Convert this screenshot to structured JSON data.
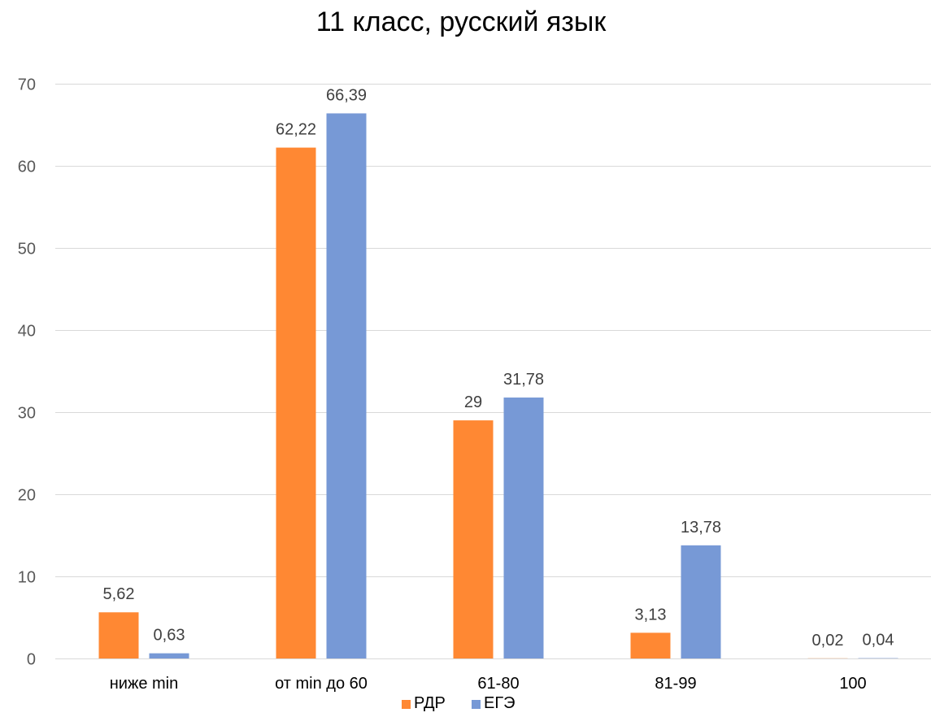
{
  "chart_data": {
    "type": "bar",
    "title": "11 класс, русский язык",
    "xlabel": "",
    "ylabel": "",
    "categories": [
      "ниже min",
      "от min до 60",
      "61-80",
      "81-99",
      "100"
    ],
    "series": [
      {
        "name": "РДР",
        "color": "#FF8833",
        "values": [
          5.62,
          62.22,
          29,
          3.13,
          0.02
        ],
        "labels": [
          "5,62",
          "62,22",
          "29",
          "3,13",
          "0,02"
        ]
      },
      {
        "name": "ЕГЭ",
        "color": "#7799D6",
        "values": [
          0.63,
          66.39,
          31.78,
          13.78,
          0.04
        ],
        "labels": [
          "0,63",
          "66,39",
          "31,78",
          "13,78",
          "0,04"
        ]
      }
    ],
    "ylim": [
      0,
      70
    ],
    "yticks": [
      0,
      10,
      20,
      30,
      40,
      50,
      60,
      70
    ],
    "ytick_labels": [
      "0",
      "10",
      "20",
      "30",
      "40",
      "50",
      "60",
      "70"
    ],
    "grid": true,
    "legend_position": "bottom"
  }
}
